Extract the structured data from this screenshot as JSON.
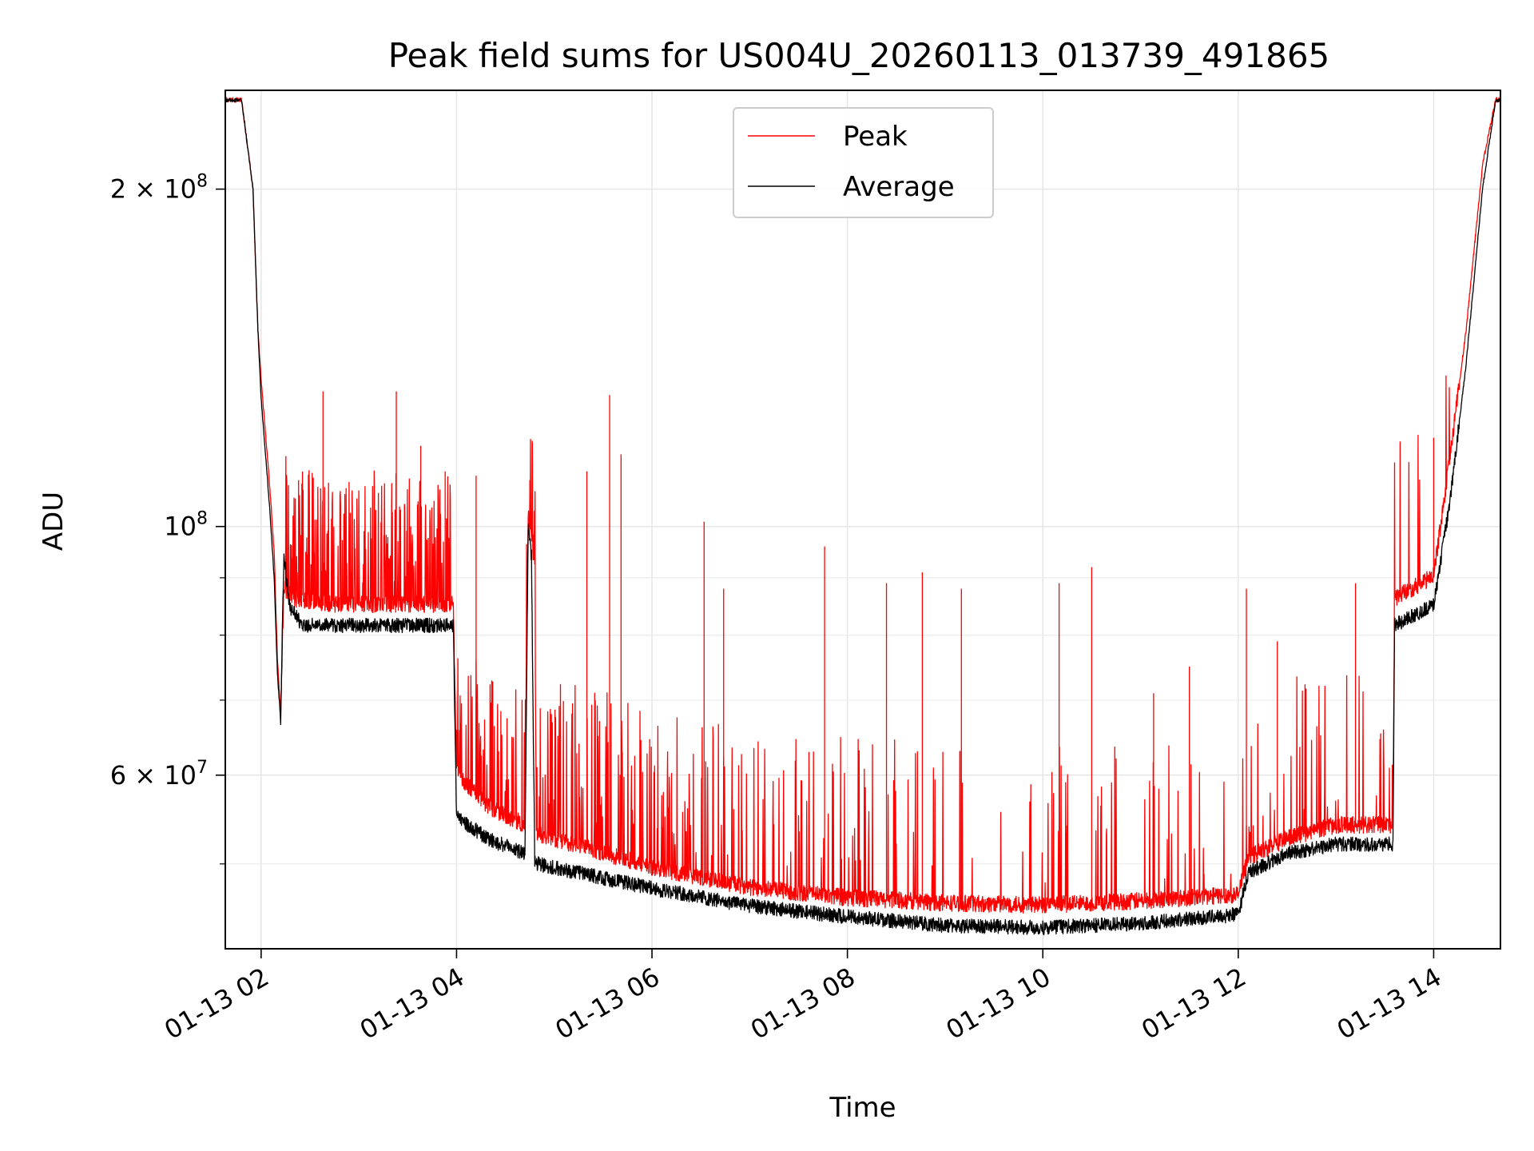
{
  "chart_data": {
    "type": "line",
    "title": "Peak field sums for US004U_20260113_013739_491865",
    "xlabel": "Time",
    "ylabel": "ADU",
    "yscale": "log",
    "ylim": [
      42000000,
      245000000
    ],
    "xlim": [
      "2026-01-13 01:38",
      "2026-01-13 14:41"
    ],
    "grid": true,
    "legend_position": "top-center",
    "x_ticks": [
      {
        "t": "2026-01-13 02:00",
        "label": "01-13 02"
      },
      {
        "t": "2026-01-13 04:00",
        "label": "01-13 04"
      },
      {
        "t": "2026-01-13 06:00",
        "label": "01-13 06"
      },
      {
        "t": "2026-01-13 08:00",
        "label": "01-13 08"
      },
      {
        "t": "2026-01-13 10:00",
        "label": "01-13 10"
      },
      {
        "t": "2026-01-13 12:00",
        "label": "01-13 12"
      },
      {
        "t": "2026-01-13 14:00",
        "label": "01-13 14"
      }
    ],
    "y_ticks": [
      {
        "value": 200000000,
        "base": "2 × 10",
        "exp": "8"
      },
      {
        "value": 100000000,
        "base": "10",
        "exp": "8"
      },
      {
        "value": 60000000,
        "base": "6 × 10",
        "exp": "7"
      }
    ],
    "y_minor_ticks": [
      50000000,
      70000000,
      80000000,
      90000000
    ],
    "series": [
      {
        "name": "Peak",
        "color": "#ff0000",
        "baseline": [
          {
            "t": "2026-01-13 01:38",
            "v": 240000000
          },
          {
            "t": "2026-01-13 01:48",
            "v": 240000000
          },
          {
            "t": "2026-01-13 01:55",
            "v": 200000000
          },
          {
            "t": "2026-01-13 01:58",
            "v": 150000000
          },
          {
            "t": "2026-01-13 02:00",
            "v": 135000000
          },
          {
            "t": "2026-01-13 02:05",
            "v": 110000000
          },
          {
            "t": "2026-01-13 02:08",
            "v": 95000000
          },
          {
            "t": "2026-01-13 02:10",
            "v": 76000000
          },
          {
            "t": "2026-01-13 02:12",
            "v": 68000000
          },
          {
            "t": "2026-01-13 02:14",
            "v": 88000000
          },
          {
            "t": "2026-01-13 02:20",
            "v": 86000000
          },
          {
            "t": "2026-01-13 02:40",
            "v": 85000000
          },
          {
            "t": "2026-01-13 03:00",
            "v": 85000000
          },
          {
            "t": "2026-01-13 03:30",
            "v": 85000000
          },
          {
            "t": "2026-01-13 03:58",
            "v": 85000000
          },
          {
            "t": "2026-01-13 04:00",
            "v": 60000000
          },
          {
            "t": "2026-01-13 04:20",
            "v": 56000000
          },
          {
            "t": "2026-01-13 04:42",
            "v": 54000000
          },
          {
            "t": "2026-01-13 04:44",
            "v": 102000000
          },
          {
            "t": "2026-01-13 04:48",
            "v": 92000000
          },
          {
            "t": "2026-01-13 04:49",
            "v": 53000000
          },
          {
            "t": "2026-01-13 05:30",
            "v": 51000000
          },
          {
            "t": "2026-01-13 06:00",
            "v": 49500000
          },
          {
            "t": "2026-01-13 07:00",
            "v": 47500000
          },
          {
            "t": "2026-01-13 08:00",
            "v": 46500000
          },
          {
            "t": "2026-01-13 09:00",
            "v": 46000000
          },
          {
            "t": "2026-01-13 10:00",
            "v": 45800000
          },
          {
            "t": "2026-01-13 11:00",
            "v": 46200000
          },
          {
            "t": "2026-01-13 12:00",
            "v": 46800000
          },
          {
            "t": "2026-01-13 12:06",
            "v": 50500000
          },
          {
            "t": "2026-01-13 12:30",
            "v": 52500000
          },
          {
            "t": "2026-01-13 13:00",
            "v": 54000000
          },
          {
            "t": "2026-01-13 13:35",
            "v": 54000000
          },
          {
            "t": "2026-01-13 13:36",
            "v": 86000000
          },
          {
            "t": "2026-01-13 14:00",
            "v": 90000000
          },
          {
            "t": "2026-01-13 14:10",
            "v": 115000000
          },
          {
            "t": "2026-01-13 14:20",
            "v": 150000000
          },
          {
            "t": "2026-01-13 14:30",
            "v": 210000000
          },
          {
            "t": "2026-01-13 14:38",
            "v": 240000000
          },
          {
            "t": "2026-01-13 14:41",
            "v": 240000000
          }
        ],
        "spikes": [
          {
            "t": "2026-01-13 02:38",
            "v": 132000000
          },
          {
            "t": "2026-01-13 03:23",
            "v": 132000000
          },
          {
            "t": "2026-01-13 02:23",
            "v": 110000000
          },
          {
            "t": "2026-01-13 03:38",
            "v": 118000000
          },
          {
            "t": "2026-01-13 03:53",
            "v": 112000000
          },
          {
            "t": "2026-01-13 04:12",
            "v": 111000000
          },
          {
            "t": "2026-01-13 04:45",
            "v": 110000000
          },
          {
            "t": "2026-01-13 05:34",
            "v": 131000000
          },
          {
            "t": "2026-01-13 05:20",
            "v": 112000000
          },
          {
            "t": "2026-01-13 05:41",
            "v": 116000000
          },
          {
            "t": "2026-01-13 06:32",
            "v": 101000000
          },
          {
            "t": "2026-01-13 06:44",
            "v": 88000000
          },
          {
            "t": "2026-01-13 07:46",
            "v": 96000000
          },
          {
            "t": "2026-01-13 08:24",
            "v": 89000000
          },
          {
            "t": "2026-01-13 08:46",
            "v": 91000000
          },
          {
            "t": "2026-01-13 09:10",
            "v": 88000000
          },
          {
            "t": "2026-01-13 10:10",
            "v": 89000000
          },
          {
            "t": "2026-01-13 10:30",
            "v": 92000000
          },
          {
            "t": "2026-01-13 11:08",
            "v": 71000000
          },
          {
            "t": "2026-01-13 11:30",
            "v": 75000000
          },
          {
            "t": "2026-01-13 12:05",
            "v": 88000000
          },
          {
            "t": "2026-01-13 12:24",
            "v": 79000000
          },
          {
            "t": "2026-01-13 13:12",
            "v": 89000000
          },
          {
            "t": "2026-01-13 14:00",
            "v": 120000000
          }
        ]
      },
      {
        "name": "Average",
        "color": "#000000",
        "baseline": [
          {
            "t": "2026-01-13 01:38",
            "v": 240000000
          },
          {
            "t": "2026-01-13 01:48",
            "v": 240000000
          },
          {
            "t": "2026-01-13 01:55",
            "v": 200000000
          },
          {
            "t": "2026-01-13 01:58",
            "v": 150000000
          },
          {
            "t": "2026-01-13 02:00",
            "v": 130000000
          },
          {
            "t": "2026-01-13 02:05",
            "v": 105000000
          },
          {
            "t": "2026-01-13 02:08",
            "v": 90000000
          },
          {
            "t": "2026-01-13 02:10",
            "v": 74000000
          },
          {
            "t": "2026-01-13 02:12",
            "v": 67000000
          },
          {
            "t": "2026-01-13 02:14",
            "v": 95000000
          },
          {
            "t": "2026-01-13 02:17",
            "v": 85000000
          },
          {
            "t": "2026-01-13 02:25",
            "v": 81500000
          },
          {
            "t": "2026-01-13 03:00",
            "v": 81500000
          },
          {
            "t": "2026-01-13 03:30",
            "v": 81500000
          },
          {
            "t": "2026-01-13 03:58",
            "v": 81500000
          },
          {
            "t": "2026-01-13 04:00",
            "v": 55000000
          },
          {
            "t": "2026-01-13 04:20",
            "v": 52500000
          },
          {
            "t": "2026-01-13 04:42",
            "v": 51000000
          },
          {
            "t": "2026-01-13 04:44",
            "v": 100000000
          },
          {
            "t": "2026-01-13 04:46",
            "v": 94000000
          },
          {
            "t": "2026-01-13 04:48",
            "v": 50000000
          },
          {
            "t": "2026-01-13 05:30",
            "v": 48500000
          },
          {
            "t": "2026-01-13 06:00",
            "v": 47500000
          },
          {
            "t": "2026-01-13 07:00",
            "v": 45800000
          },
          {
            "t": "2026-01-13 08:00",
            "v": 44800000
          },
          {
            "t": "2026-01-13 09:00",
            "v": 44000000
          },
          {
            "t": "2026-01-13 10:00",
            "v": 43800000
          },
          {
            "t": "2026-01-13 11:00",
            "v": 44200000
          },
          {
            "t": "2026-01-13 12:00",
            "v": 45000000
          },
          {
            "t": "2026-01-13 12:06",
            "v": 49000000
          },
          {
            "t": "2026-01-13 12:30",
            "v": 51000000
          },
          {
            "t": "2026-01-13 13:00",
            "v": 52000000
          },
          {
            "t": "2026-01-13 13:35",
            "v": 52000000
          },
          {
            "t": "2026-01-13 13:36",
            "v": 81500000
          },
          {
            "t": "2026-01-13 14:00",
            "v": 85000000
          },
          {
            "t": "2026-01-13 14:10",
            "v": 105000000
          },
          {
            "t": "2026-01-13 14:20",
            "v": 140000000
          },
          {
            "t": "2026-01-13 14:30",
            "v": 200000000
          },
          {
            "t": "2026-01-13 14:38",
            "v": 240000000
          },
          {
            "t": "2026-01-13 14:41",
            "v": 240000000
          }
        ]
      }
    ]
  }
}
